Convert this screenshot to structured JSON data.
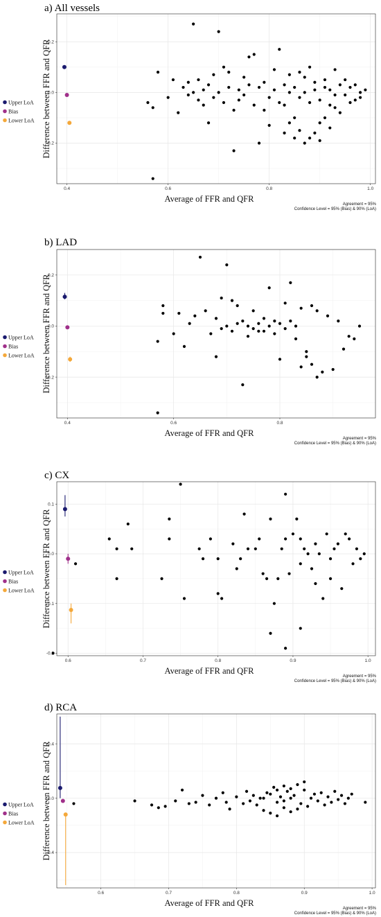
{
  "legend": {
    "entries": [
      {
        "label": "Upper LoA",
        "color": "#1a1a6e"
      },
      {
        "label": "Bias",
        "color": "#a0308a"
      },
      {
        "label": "Lower LoA",
        "color": "#f4a83a"
      }
    ]
  },
  "colors": {
    "points": "#000000",
    "upper": "#1a1a6e",
    "bias": "#a0308a",
    "lower": "#f4a83a"
  },
  "chart_data": [
    {
      "type": "scatter",
      "title": "a) All vessels",
      "xlabel": "Average of FFR and QFR",
      "ylabel": "Difference between FFR and QFR",
      "caption_agreement": "Agreement = 95%",
      "caption_confidence": "Confidence Level = 95% (Bias) & 90% (LoA)",
      "xlim": [
        0.38,
        1.01
      ],
      "ylim": [
        -0.36,
        0.31
      ],
      "x_ticks": [
        0.4,
        0.6,
        0.8,
        1.0
      ],
      "x_tick_labels": [
        "0.4",
        "0.6",
        "0.8",
        "1.0"
      ],
      "y_ticks": [
        -0.2,
        0.0,
        0.2
      ],
      "y_tick_labels": [
        "-0.2",
        "0.0",
        "0.2"
      ],
      "grid": true,
      "legend_placement": "left",
      "limits": {
        "x_upper": 0.395,
        "upper": 0.1,
        "upper_ci": [
          0.1,
          0.1
        ],
        "x_bias": 0.4,
        "bias": -0.01,
        "bias_ci": [
          -0.01,
          -0.01
        ],
        "x_lower": 0.405,
        "lower": -0.12,
        "lower_ci": [
          -0.12,
          -0.12
        ]
      },
      "points": [
        [
          0.65,
          0.27
        ],
        [
          0.7,
          0.24
        ],
        [
          0.57,
          -0.34
        ],
        [
          0.73,
          -0.23
        ],
        [
          0.78,
          -0.2
        ],
        [
          0.82,
          0.17
        ],
        [
          0.8,
          -0.13
        ],
        [
          0.77,
          0.15
        ],
        [
          0.76,
          0.14
        ],
        [
          0.58,
          0.08
        ],
        [
          0.56,
          -0.04
        ],
        [
          0.57,
          -0.06
        ],
        [
          0.6,
          -0.02
        ],
        [
          0.61,
          0.05
        ],
        [
          0.62,
          -0.08
        ],
        [
          0.63,
          0.02
        ],
        [
          0.64,
          0.04
        ],
        [
          0.66,
          0.05
        ],
        [
          0.67,
          -0.05
        ],
        [
          0.68,
          -0.12
        ],
        [
          0.69,
          0.07
        ],
        [
          0.71,
          0.1
        ],
        [
          0.72,
          0.08
        ],
        [
          0.74,
          -0.03
        ],
        [
          0.75,
          0.06
        ],
        [
          0.79,
          -0.07
        ],
        [
          0.81,
          0.09
        ],
        [
          0.83,
          -0.05
        ],
        [
          0.84,
          0.07
        ],
        [
          0.85,
          -0.1
        ],
        [
          0.86,
          -0.15
        ],
        [
          0.87,
          0.06
        ],
        [
          0.88,
          -0.18
        ],
        [
          0.89,
          0.04
        ],
        [
          0.9,
          -0.19
        ],
        [
          0.91,
          0.02
        ],
        [
          0.92,
          -0.14
        ],
        [
          0.93,
          0.09
        ],
        [
          0.94,
          -0.08
        ],
        [
          0.95,
          0.05
        ],
        [
          0.96,
          -0.04
        ],
        [
          0.97,
          0.03
        ],
        [
          0.98,
          -0.02
        ],
        [
          0.99,
          0.01
        ],
        [
          0.9,
          -0.12
        ],
        [
          0.87,
          -0.2
        ],
        [
          0.88,
          0.1
        ],
        [
          0.86,
          0.08
        ],
        [
          0.92,
          -0.05
        ],
        [
          0.84,
          -0.12
        ],
        [
          0.83,
          -0.16
        ],
        [
          0.85,
          -0.18
        ],
        [
          0.89,
          -0.16
        ],
        [
          0.91,
          -0.1
        ],
        [
          0.93,
          -0.06
        ],
        [
          0.78,
          0.02
        ],
        [
          0.79,
          0.04
        ],
        [
          0.8,
          -0.02
        ],
        [
          0.81,
          0.01
        ],
        [
          0.82,
          -0.04
        ],
        [
          0.77,
          -0.05
        ],
        [
          0.76,
          0.03
        ],
        [
          0.75,
          -0.01
        ],
        [
          0.74,
          0.01
        ],
        [
          0.73,
          -0.07
        ],
        [
          0.72,
          0.02
        ],
        [
          0.71,
          -0.04
        ],
        [
          0.7,
          0.0
        ],
        [
          0.69,
          -0.02
        ],
        [
          0.68,
          0.03
        ],
        [
          0.67,
          0.01
        ],
        [
          0.66,
          -0.03
        ],
        [
          0.65,
          0.0
        ],
        [
          0.64,
          -0.01
        ],
        [
          0.95,
          -0.01
        ],
        [
          0.94,
          0.03
        ],
        [
          0.96,
          0.02
        ],
        [
          0.97,
          -0.03
        ],
        [
          0.98,
          0.0
        ],
        [
          0.85,
          0.02
        ],
        [
          0.86,
          -0.02
        ],
        [
          0.87,
          0.0
        ],
        [
          0.88,
          -0.04
        ],
        [
          0.89,
          0.01
        ],
        [
          0.9,
          -0.03
        ],
        [
          0.91,
          0.05
        ],
        [
          0.92,
          0.01
        ],
        [
          0.93,
          -0.01
        ],
        [
          0.84,
          0.0
        ],
        [
          0.83,
          0.03
        ]
      ]
    },
    {
      "type": "scatter",
      "title": "b) LAD",
      "xlabel": "Average of FFR and QFR",
      "ylabel": "Difference between FFR and QFR",
      "caption_agreement": "Agreement = 95%",
      "caption_confidence": "Confidence Level = 95% (Bias) & 90% (LoA)",
      "xlim": [
        0.38,
        0.98
      ],
      "ylim": [
        -0.36,
        0.3
      ],
      "x_ticks": [
        0.4,
        0.6,
        0.8
      ],
      "x_tick_labels": [
        "0.4",
        "0.6",
        "0.8"
      ],
      "y_ticks": [
        -0.2,
        0.0,
        0.2
      ],
      "y_tick_labels": [
        "-0.2",
        "0.0",
        "0.2"
      ],
      "grid": true,
      "legend_placement": "left",
      "limits": {
        "x_upper": 0.395,
        "upper": 0.115,
        "upper_ci": [
          0.105,
          0.13
        ],
        "x_bias": 0.4,
        "bias": -0.005,
        "bias_ci": [
          -0.01,
          0.0
        ],
        "x_lower": 0.405,
        "lower": -0.13,
        "lower_ci": [
          -0.14,
          -0.12
        ]
      },
      "points": [
        [
          0.65,
          0.27
        ],
        [
          0.7,
          0.24
        ],
        [
          0.57,
          -0.34
        ],
        [
          0.73,
          -0.23
        ],
        [
          0.78,
          0.15
        ],
        [
          0.82,
          0.17
        ],
        [
          0.8,
          -0.13
        ],
        [
          0.87,
          -0.2
        ],
        [
          0.58,
          0.08
        ],
        [
          0.57,
          -0.06
        ],
        [
          0.58,
          0.05
        ],
        [
          0.6,
          -0.03
        ],
        [
          0.61,
          0.05
        ],
        [
          0.62,
          -0.08
        ],
        [
          0.63,
          0.01
        ],
        [
          0.64,
          0.04
        ],
        [
          0.66,
          0.06
        ],
        [
          0.67,
          -0.03
        ],
        [
          0.68,
          -0.12
        ],
        [
          0.69,
          0.11
        ],
        [
          0.71,
          0.1
        ],
        [
          0.72,
          0.08
        ],
        [
          0.74,
          -0.04
        ],
        [
          0.75,
          0.06
        ],
        [
          0.76,
          -0.02
        ],
        [
          0.77,
          0.03
        ],
        [
          0.79,
          0.02
        ],
        [
          0.81,
          0.09
        ],
        [
          0.83,
          -0.05
        ],
        [
          0.84,
          0.07
        ],
        [
          0.85,
          -0.1
        ],
        [
          0.86,
          -0.15
        ],
        [
          0.87,
          0.06
        ],
        [
          0.88,
          -0.18
        ],
        [
          0.89,
          0.04
        ],
        [
          0.9,
          -0.17
        ],
        [
          0.91,
          0.02
        ],
        [
          0.92,
          -0.09
        ],
        [
          0.93,
          -0.04
        ],
        [
          0.94,
          -0.05
        ],
        [
          0.95,
          0.0
        ],
        [
          0.84,
          -0.16
        ],
        [
          0.85,
          -0.12
        ],
        [
          0.86,
          0.08
        ],
        [
          0.73,
          0.02
        ],
        [
          0.74,
          0.0
        ],
        [
          0.75,
          -0.01
        ],
        [
          0.76,
          0.01
        ],
        [
          0.77,
          -0.02
        ],
        [
          0.78,
          0.0
        ],
        [
          0.79,
          -0.03
        ],
        [
          0.8,
          0.01
        ],
        [
          0.81,
          -0.01
        ],
        [
          0.82,
          0.02
        ],
        [
          0.83,
          0.0
        ],
        [
          0.7,
          0.0
        ],
        [
          0.71,
          -0.02
        ],
        [
          0.72,
          0.01
        ],
        [
          0.69,
          -0.01
        ],
        [
          0.68,
          0.03
        ]
      ]
    },
    {
      "type": "scatter",
      "title": "c) CX",
      "xlabel": "Average of FFR and QFR",
      "ylabel": "Difference between FFR and QFR",
      "caption_agreement": "Agreement = 95%",
      "caption_confidence": "Confidence Level = 95% (Bias) & 90% (LoA)",
      "xlim": [
        0.585,
        1.01
      ],
      "ylim": [
        -0.205,
        0.145
      ],
      "x_ticks": [
        0.6,
        0.7,
        0.8,
        0.9,
        1.0
      ],
      "x_tick_labels": [
        "0.6",
        "0.7",
        "0.8",
        "0.9",
        "1.0"
      ],
      "y_ticks": [
        -0.2,
        -0.1,
        0.0,
        0.1
      ],
      "y_tick_labels": [
        "-0.2",
        "-0.1",
        "0.0",
        "0.1"
      ],
      "grid": true,
      "legend_placement": "left",
      "limits": {
        "x_upper": 0.596,
        "upper": 0.09,
        "upper_ci": [
          0.075,
          0.118
        ],
        "x_bias": 0.6,
        "bias": -0.01,
        "bias_ci": [
          -0.02,
          0.0
        ],
        "x_lower": 0.604,
        "lower": -0.113,
        "lower_ci": [
          -0.14,
          -0.1
        ]
      },
      "points": [
        [
          0.75,
          0.14
        ],
        [
          0.58,
          -0.2
        ],
        [
          0.89,
          0.12
        ],
        [
          0.89,
          -0.19
        ],
        [
          0.91,
          -0.15
        ],
        [
          0.87,
          -0.16
        ],
        [
          0.61,
          -0.02
        ],
        [
          0.655,
          0.03
        ],
        [
          0.665,
          0.01
        ],
        [
          0.665,
          -0.05
        ],
        [
          0.68,
          0.06
        ],
        [
          0.685,
          0.01
        ],
        [
          0.725,
          -0.05
        ],
        [
          0.735,
          0.07
        ],
        [
          0.735,
          0.03
        ],
        [
          0.755,
          -0.09
        ],
        [
          0.775,
          0.01
        ],
        [
          0.78,
          -0.01
        ],
        [
          0.79,
          0.03
        ],
        [
          0.8,
          -0.01
        ],
        [
          0.8,
          -0.08
        ],
        [
          0.805,
          -0.09
        ],
        [
          0.82,
          0.02
        ],
        [
          0.825,
          -0.03
        ],
        [
          0.83,
          -0.01
        ],
        [
          0.835,
          0.08
        ],
        [
          0.84,
          0.01
        ],
        [
          0.85,
          0.01
        ],
        [
          0.855,
          0.03
        ],
        [
          0.86,
          -0.04
        ],
        [
          0.865,
          -0.05
        ],
        [
          0.87,
          0.07
        ],
        [
          0.875,
          -0.1
        ],
        [
          0.88,
          -0.05
        ],
        [
          0.885,
          0.01
        ],
        [
          0.89,
          0.03
        ],
        [
          0.895,
          -0.04
        ],
        [
          0.9,
          0.04
        ],
        [
          0.905,
          0.07
        ],
        [
          0.91,
          -0.02
        ],
        [
          0.915,
          0.01
        ],
        [
          0.92,
          0.0
        ],
        [
          0.925,
          -0.03
        ],
        [
          0.93,
          0.02
        ],
        [
          0.935,
          0.0
        ],
        [
          0.94,
          -0.09
        ],
        [
          0.945,
          0.04
        ],
        [
          0.95,
          -0.01
        ],
        [
          0.955,
          0.01
        ],
        [
          0.96,
          0.02
        ],
        [
          0.965,
          -0.07
        ],
        [
          0.97,
          0.04
        ],
        [
          0.975,
          0.03
        ],
        [
          0.98,
          -0.02
        ],
        [
          0.985,
          0.01
        ],
        [
          0.99,
          -0.01
        ],
        [
          0.995,
          0.0
        ],
        [
          0.95,
          -0.05
        ],
        [
          0.93,
          -0.06
        ],
        [
          0.91,
          0.03
        ]
      ]
    },
    {
      "type": "scatter",
      "title": "d) RCA",
      "xlabel": "Average of FFR and QFR",
      "ylabel": "Difference between FFR and QFR",
      "caption_agreement": "Agreement = 95%",
      "caption_confidence": "Confidence Level = 95% (Bias) & 90% (LoA)",
      "xlim": [
        0.535,
        1.005
      ],
      "ylim": [
        -0.66,
        0.62
      ],
      "x_ticks": [
        0.6,
        0.7,
        0.8,
        0.9,
        1.0
      ],
      "x_tick_labels": [
        "0.6",
        "0.7",
        "0.8",
        "0.9",
        "1.0"
      ],
      "y_ticks": [
        -0.4,
        0.0,
        0.4
      ],
      "y_tick_labels": [
        "-0.4",
        "0.0",
        "0.4"
      ],
      "grid": true,
      "legend_placement": "left",
      "limits": {
        "x_upper": 0.54,
        "upper": 0.075,
        "upper_ci": [
          0.0,
          0.6
        ],
        "x_bias": 0.544,
        "bias": -0.02,
        "bias_ci": [
          -0.03,
          -0.01
        ],
        "x_lower": 0.548,
        "lower": -0.12,
        "lower_ci": [
          -0.64,
          -0.12
        ]
      },
      "points": [
        [
          0.56,
          -0.04
        ],
        [
          0.65,
          -0.02
        ],
        [
          0.675,
          -0.05
        ],
        [
          0.685,
          -0.07
        ],
        [
          0.695,
          -0.06
        ],
        [
          0.71,
          -0.02
        ],
        [
          0.72,
          0.06
        ],
        [
          0.73,
          -0.04
        ],
        [
          0.74,
          -0.03
        ],
        [
          0.75,
          0.02
        ],
        [
          0.76,
          -0.05
        ],
        [
          0.77,
          0.0
        ],
        [
          0.78,
          0.04
        ],
        [
          0.785,
          -0.03
        ],
        [
          0.79,
          -0.08
        ],
        [
          0.8,
          0.01
        ],
        [
          0.81,
          -0.04
        ],
        [
          0.815,
          0.05
        ],
        [
          0.82,
          -0.02
        ],
        [
          0.825,
          0.02
        ],
        [
          0.83,
          -0.05
        ],
        [
          0.835,
          0.0
        ],
        [
          0.84,
          -0.09
        ],
        [
          0.845,
          0.04
        ],
        [
          0.85,
          -0.11
        ],
        [
          0.855,
          0.08
        ],
        [
          0.86,
          -0.03
        ],
        [
          0.865,
          0.01
        ],
        [
          0.87,
          -0.07
        ],
        [
          0.875,
          0.05
        ],
        [
          0.88,
          -0.1
        ],
        [
          0.885,
          0.02
        ],
        [
          0.89,
          0.1
        ],
        [
          0.895,
          -0.04
        ],
        [
          0.9,
          0.06
        ],
        [
          0.905,
          -0.06
        ],
        [
          0.91,
          0.0
        ],
        [
          0.915,
          0.03
        ],
        [
          0.92,
          -0.02
        ],
        [
          0.925,
          0.04
        ],
        [
          0.93,
          -0.05
        ],
        [
          0.935,
          0.01
        ],
        [
          0.94,
          -0.03
        ],
        [
          0.945,
          0.05
        ],
        [
          0.95,
          -0.01
        ],
        [
          0.955,
          0.02
        ],
        [
          0.96,
          -0.04
        ],
        [
          0.965,
          0.0
        ],
        [
          0.99,
          -0.03
        ],
        [
          0.97,
          0.03
        ],
        [
          0.86,
          -0.13
        ],
        [
          0.87,
          0.09
        ],
        [
          0.88,
          0.07
        ],
        [
          0.89,
          -0.08
        ],
        [
          0.9,
          0.12
        ],
        [
          0.84,
          0.0
        ],
        [
          0.85,
          0.03
        ],
        [
          0.86,
          0.06
        ],
        [
          0.87,
          -0.02
        ],
        [
          0.88,
          0.0
        ]
      ]
    }
  ]
}
